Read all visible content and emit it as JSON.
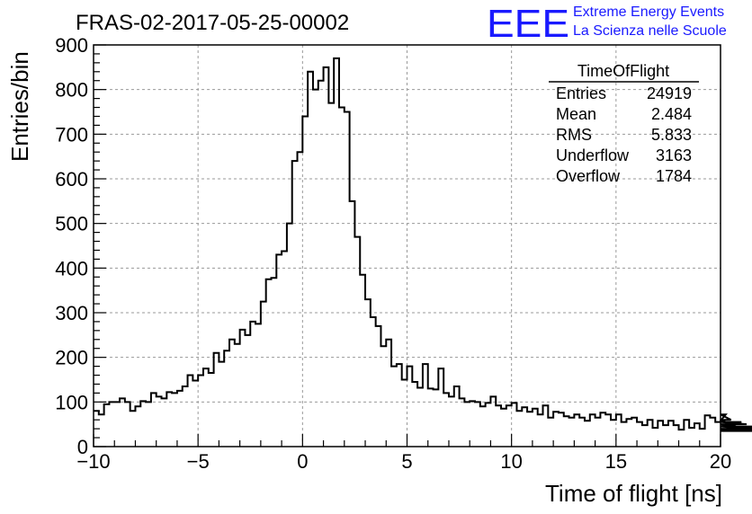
{
  "title": "FRAS-02-2017-05-25-00002",
  "logo": {
    "mark": "EEE",
    "line1": "Extreme Energy Events",
    "line2": "La Scienza nelle Scuole",
    "color": "#1a1aff"
  },
  "stats_box": {
    "name": "TimeOfFlight",
    "rows": [
      {
        "label": "Entries",
        "value": "24919"
      },
      {
        "label": "Mean",
        "value": "2.484"
      },
      {
        "label": "RMS",
        "value": "5.833"
      },
      {
        "label": "Underflow",
        "value": "3163"
      },
      {
        "label": "Overflow",
        "value": "1784"
      }
    ]
  },
  "chart_data": {
    "type": "bar",
    "style": "step-histogram",
    "title": "FRAS-02-2017-05-25-00002",
    "xlabel": "Time of flight [ns]",
    "ylabel": "Entries/bin",
    "xlim": [
      -10,
      20
    ],
    "ylim": [
      0,
      900
    ],
    "bin_width": 0.25,
    "x_ticks": [
      -10,
      -5,
      0,
      5,
      10,
      15,
      20
    ],
    "x_tick_labels": [
      "−10",
      "−5",
      "0",
      "5",
      "10",
      "15",
      "20"
    ],
    "y_ticks": [
      0,
      100,
      200,
      300,
      400,
      500,
      600,
      700,
      800,
      900
    ],
    "y_tick_labels": [
      "0",
      "100",
      "200",
      "300",
      "400",
      "500",
      "600",
      "700",
      "800",
      "900"
    ],
    "grid": true,
    "line_color": "#000000",
    "values": [
      80,
      72,
      95,
      100,
      100,
      108,
      100,
      80,
      90,
      102,
      100,
      120,
      112,
      108,
      122,
      120,
      125,
      135,
      160,
      148,
      160,
      175,
      165,
      210,
      190,
      215,
      240,
      230,
      262,
      250,
      280,
      275,
      325,
      375,
      378,
      430,
      438,
      500,
      640,
      660,
      740,
      840,
      800,
      820,
      850,
      770,
      870,
      760,
      750,
      550,
      470,
      385,
      330,
      290,
      270,
      225,
      240,
      180,
      185,
      150,
      180,
      145,
      132,
      185,
      130,
      128,
      175,
      120,
      112,
      135,
      108,
      100,
      102,
      100,
      90,
      98,
      112,
      92,
      85,
      92,
      98,
      80,
      88,
      78,
      85,
      72,
      92,
      65,
      78,
      76,
      68,
      65,
      72,
      65,
      58,
      72,
      65,
      76,
      72,
      60,
      72,
      55,
      62,
      65,
      55,
      48,
      60,
      42,
      58,
      48,
      58,
      48,
      38,
      60,
      42,
      52,
      40,
      70,
      65,
      55,
      58,
      72,
      60,
      45,
      55,
      50,
      38,
      38,
      45,
      38,
      40,
      38,
      40,
      38,
      40,
      35,
      38,
      38
    ]
  }
}
